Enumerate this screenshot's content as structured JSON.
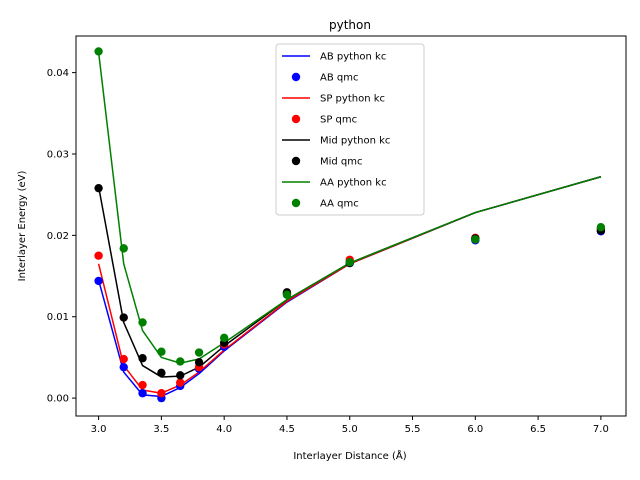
{
  "chart_data": {
    "type": "line",
    "title": "python",
    "xlabel": "Interlayer Distance (Å)",
    "ylabel": "Interlayer Energy (eV)",
    "xlim": [
      2.82,
      7.2
    ],
    "ylim": [
      -0.0022,
      0.0445
    ],
    "xticks": [
      3.0,
      3.5,
      4.0,
      4.5,
      5.0,
      5.5,
      6.0,
      6.5,
      7.0
    ],
    "xtick_labels": [
      "3.0",
      "3.5",
      "4.0",
      "4.5",
      "5.0",
      "5.5",
      "6.0",
      "6.5",
      "7.0"
    ],
    "yticks": [
      0.0,
      0.01,
      0.02,
      0.03,
      0.04
    ],
    "ytick_labels": [
      "0.00",
      "0.01",
      "0.02",
      "0.03",
      "0.04"
    ],
    "grid": false,
    "legend_position": "top-center",
    "series": [
      {
        "name": "AB python kc",
        "kind": "line",
        "color": "#0000ff",
        "x": [
          3.0,
          3.2,
          3.35,
          3.5,
          3.65,
          3.8,
          4.0,
          4.5,
          5.0,
          6.0,
          7.0
        ],
        "y": [
          0.0145,
          0.0032,
          0.0004,
          0.0002,
          0.0013,
          0.003,
          0.0058,
          0.0118,
          0.0165,
          0.0228,
          0.0272
        ]
      },
      {
        "name": "AB qmc",
        "kind": "scatter",
        "color": "#0000ff",
        "x": [
          3.0,
          3.2,
          3.35,
          3.5,
          3.65,
          3.8,
          4.0,
          4.5,
          5.0,
          6.0,
          7.0
        ],
        "y": [
          0.0144,
          0.0038,
          0.0006,
          0.0,
          0.0015,
          0.0036,
          0.0063,
          0.0128,
          0.0166,
          0.0194,
          0.0205
        ]
      },
      {
        "name": "SP python kc",
        "kind": "line",
        "color": "#ff0000",
        "x": [
          3.0,
          3.2,
          3.35,
          3.5,
          3.65,
          3.8,
          4.0,
          4.5,
          5.0,
          6.0,
          7.0
        ],
        "y": [
          0.0165,
          0.004,
          0.001,
          0.0006,
          0.0016,
          0.0032,
          0.0059,
          0.0119,
          0.0165,
          0.0228,
          0.0272
        ]
      },
      {
        "name": "SP qmc",
        "kind": "scatter",
        "color": "#ff0000",
        "x": [
          3.0,
          3.2,
          3.35,
          3.5,
          3.65,
          3.8,
          4.0,
          4.5,
          5.0,
          6.0,
          7.0
        ],
        "y": [
          0.0175,
          0.0048,
          0.0016,
          0.0006,
          0.0019,
          0.0038,
          0.0066,
          0.0129,
          0.017,
          0.0197,
          0.0208
        ]
      },
      {
        "name": "Mid python kc",
        "kind": "line",
        "color": "#000000",
        "x": [
          3.0,
          3.2,
          3.35,
          3.5,
          3.65,
          3.8,
          4.0,
          4.5,
          5.0,
          6.0,
          7.0
        ],
        "y": [
          0.026,
          0.0093,
          0.004,
          0.0026,
          0.0027,
          0.0038,
          0.0064,
          0.0121,
          0.0166,
          0.0228,
          0.0272
        ]
      },
      {
        "name": "Mid qmc",
        "kind": "scatter",
        "color": "#000000",
        "x": [
          3.0,
          3.2,
          3.35,
          3.5,
          3.65,
          3.8,
          4.0,
          4.5,
          5.0,
          6.0,
          7.0
        ],
        "y": [
          0.0258,
          0.0099,
          0.0049,
          0.0031,
          0.0028,
          0.0044,
          0.0068,
          0.013,
          0.0166,
          0.0196,
          0.0206
        ]
      },
      {
        "name": "AA python kc",
        "kind": "line",
        "color": "#008000",
        "x": [
          3.0,
          3.2,
          3.35,
          3.5,
          3.65,
          3.8,
          4.0,
          4.5,
          5.0,
          6.0,
          7.0
        ],
        "y": [
          0.0425,
          0.0165,
          0.0083,
          0.005,
          0.0043,
          0.0048,
          0.0068,
          0.0121,
          0.0166,
          0.0228,
          0.0272
        ]
      },
      {
        "name": "AA qmc",
        "kind": "scatter",
        "color": "#008000",
        "x": [
          3.0,
          3.2,
          3.35,
          3.5,
          3.65,
          3.8,
          4.0,
          4.5,
          5.0,
          6.0,
          7.0
        ],
        "y": [
          0.0426,
          0.0184,
          0.0093,
          0.0057,
          0.0045,
          0.0056,
          0.0074,
          0.0127,
          0.0167,
          0.0195,
          0.021
        ]
      }
    ]
  }
}
